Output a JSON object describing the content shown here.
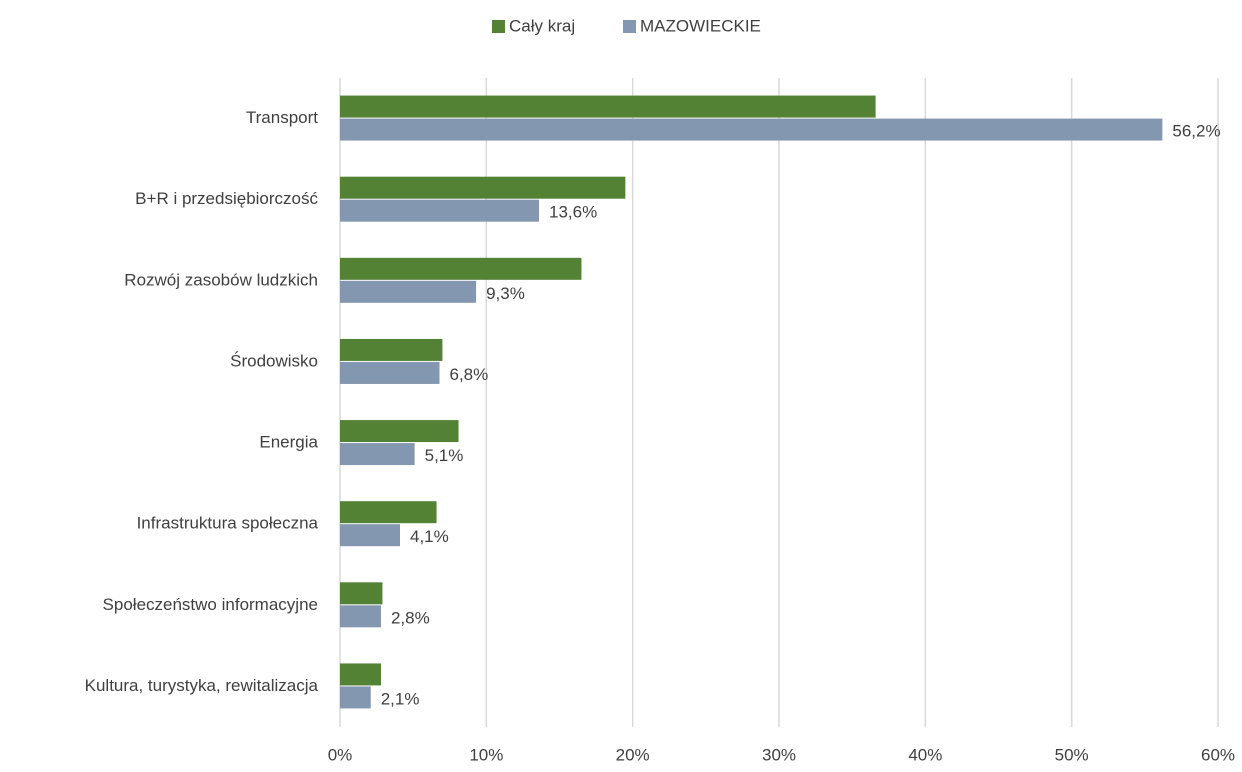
{
  "chart_data": {
    "type": "bar",
    "orientation": "horizontal",
    "categories": [
      "Transport",
      "B+R i przedsiębiorczość",
      "Rozwój zasobów ludzkich",
      "Środowisko",
      "Energia",
      "Infrastruktura społeczna",
      "Społeczeństwo informacyjne",
      "Kultura, turystyka, rewitalizacja"
    ],
    "series": [
      {
        "name": "Cały kraj",
        "color": "#548235",
        "values": [
          36.6,
          19.5,
          16.5,
          7.0,
          8.1,
          6.6,
          2.9,
          2.8
        ]
      },
      {
        "name": "MAZOWIECKIE",
        "color": "#8497b0",
        "values": [
          56.2,
          13.6,
          9.3,
          6.8,
          5.1,
          4.1,
          2.8,
          2.1
        ],
        "value_labels": [
          "56,2%",
          "13,6%",
          "9,3%",
          "6,8%",
          "5,1%",
          "4,1%",
          "2,8%",
          "2,1%"
        ]
      }
    ],
    "xlim": [
      0,
      60
    ],
    "xticks": [
      {
        "value": 0,
        "label": "0%"
      },
      {
        "value": 10,
        "label": "10%"
      },
      {
        "value": 20,
        "label": "20%"
      },
      {
        "value": 30,
        "label": "30%"
      },
      {
        "value": 40,
        "label": "40%"
      },
      {
        "value": 50,
        "label": "50%"
      },
      {
        "value": 60,
        "label": "60%"
      }
    ],
    "grid": true,
    "legend": "top"
  }
}
